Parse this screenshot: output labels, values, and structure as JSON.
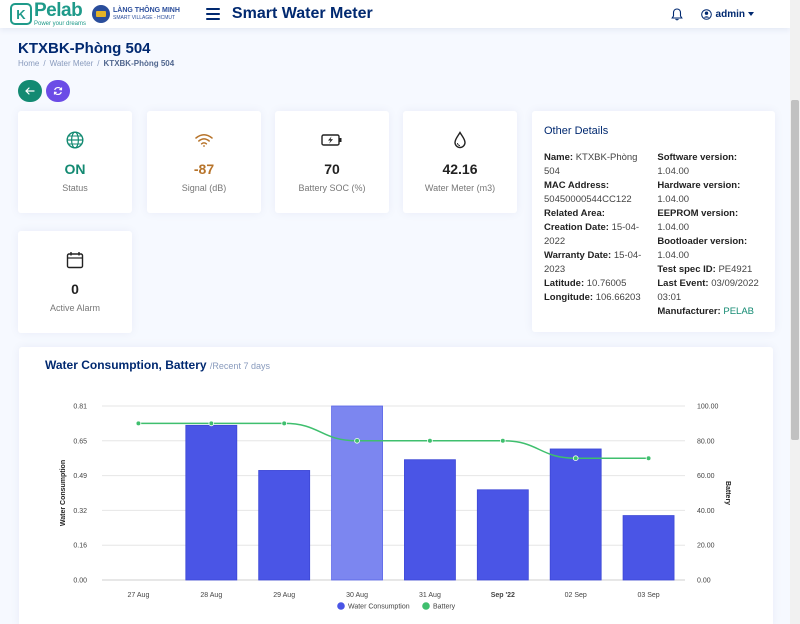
{
  "header": {
    "logo_name": "Pelab",
    "logo_tagline": "Power your dreams",
    "partner_name": "LÀNG THÔNG MINH",
    "partner_sub": "SMART VILLAGE - HCMUT",
    "app_title": "Smart Water Meter",
    "user": "admin"
  },
  "page": {
    "title": "KTXBK-Phòng 504",
    "breadcrumb": [
      "Home",
      "Water Meter",
      "KTXBK-Phòng 504"
    ]
  },
  "stats": [
    {
      "icon": "globe-icon",
      "value": "ON",
      "label": "Status",
      "color": "#138a72"
    },
    {
      "icon": "wifi-icon",
      "value": "-87",
      "label": "Signal (dB)",
      "color": "#b7742b"
    },
    {
      "icon": "battery-charging-icon",
      "value": "70",
      "label": "Battery SOC (%)",
      "color": "#222222"
    },
    {
      "icon": "water-drop-icon",
      "value": "42.16",
      "label": "Water Meter (m3)",
      "color": "#222222"
    },
    {
      "icon": "calendar-icon",
      "value": "0",
      "label": "Active Alarm",
      "color": "#222222"
    }
  ],
  "details": {
    "title": "Other Details",
    "left": [
      {
        "label": "Name:",
        "value": "KTXBK-Phòng 504"
      },
      {
        "label": "MAC Address:",
        "value": "50450000544CC122"
      },
      {
        "label": "Related Area:",
        "value": ""
      },
      {
        "label": "Creation Date:",
        "value": "15-04-2022"
      },
      {
        "label": "Warranty Date:",
        "value": "15-04-2023"
      },
      {
        "label": "Latitude:",
        "value": "10.76005"
      },
      {
        "label": "Longitude:",
        "value": "106.66203"
      }
    ],
    "right": [
      {
        "label": "Software version:",
        "value": "1.04.00"
      },
      {
        "label": "Hardware version:",
        "value": "1.04.00"
      },
      {
        "label": "EEPROM version:",
        "value": "1.04.00"
      },
      {
        "label": "Bootloader version:",
        "value": "1.04.00"
      },
      {
        "label": "Test spec ID:",
        "value": "PE4921"
      },
      {
        "label": "Last Event:",
        "value": "03/09/2022 03:01"
      },
      {
        "label": "Manufacturer:",
        "value": "PELAB"
      }
    ]
  },
  "chart_title": "Water Consumption, Battery",
  "chart_subtitle": "/Recent 7 days",
  "chart_data": {
    "type": "bar",
    "categories": [
      "27 Aug",
      "28 Aug",
      "29 Aug",
      "30 Aug",
      "31 Aug",
      "Sep '22",
      "02 Sep",
      "03 Sep"
    ],
    "series": [
      {
        "name": "Water Consumption",
        "type": "bar",
        "values": [
          0,
          0.72,
          0.51,
          0.81,
          0.56,
          0.42,
          0.61,
          0.3
        ],
        "color": "#4a55e6"
      },
      {
        "name": "Battery",
        "type": "line",
        "values": [
          90,
          90,
          90,
          80,
          80,
          80,
          70,
          70
        ],
        "color": "#3fbf6e"
      }
    ],
    "y_left": {
      "label": "Water Consumption",
      "ticks": [
        "0.00",
        "0.16",
        "0.32",
        "0.49",
        "0.65",
        "0.81"
      ],
      "max": 0.81
    },
    "y_right": {
      "label": "Battery",
      "ticks": [
        "0.00",
        "20.00",
        "40.00",
        "60.00",
        "80.00",
        "100.00"
      ],
      "max": 100
    },
    "highlighted_category": "30 Aug",
    "bold_tick": "Sep '22",
    "legend_placement": "bottom"
  }
}
